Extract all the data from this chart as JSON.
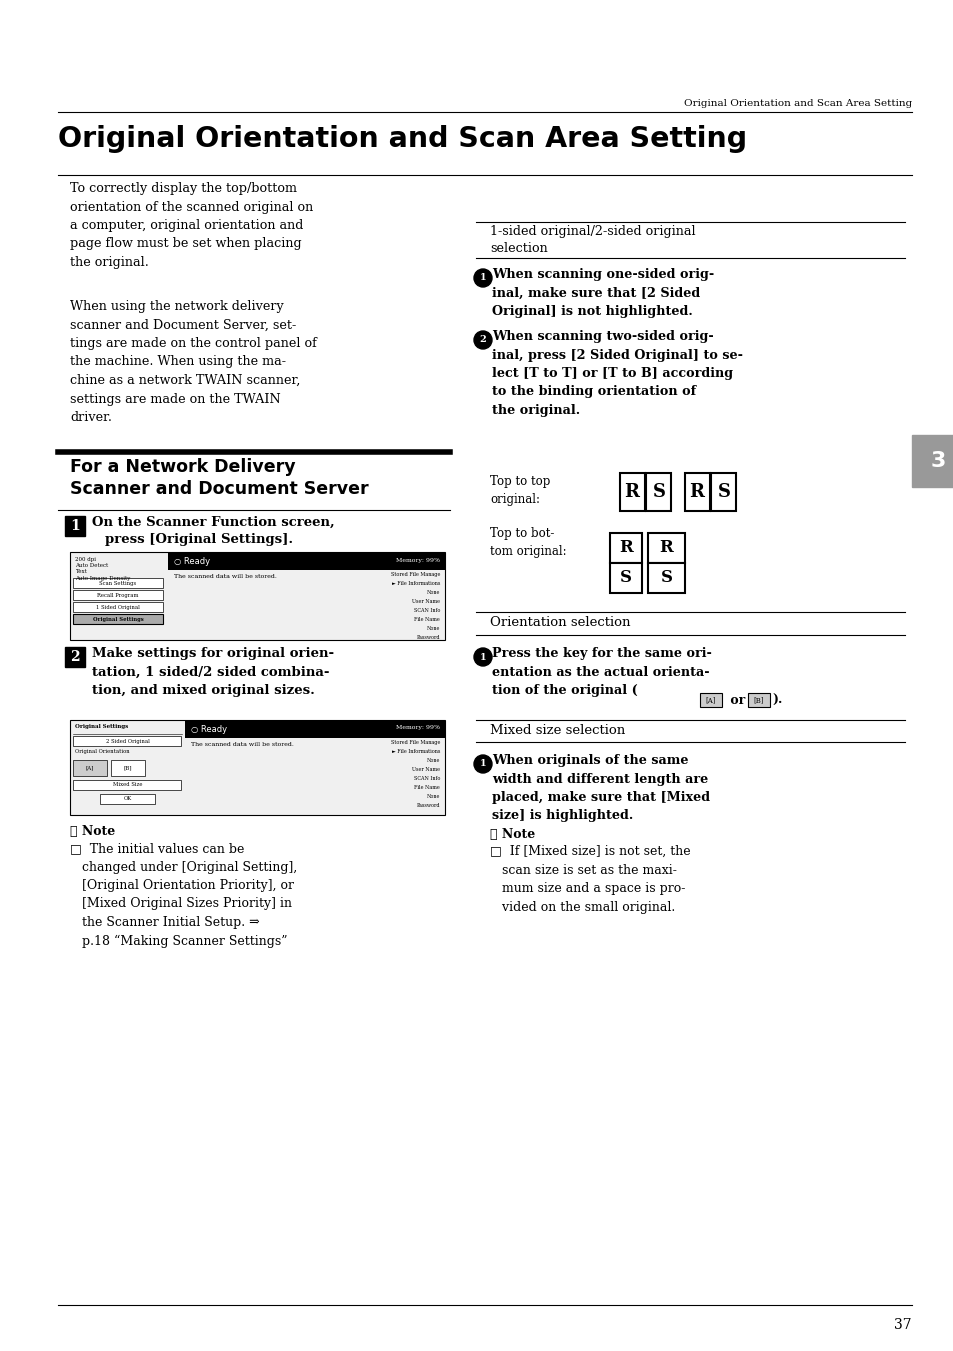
{
  "page_bg": "#ffffff",
  "header_text": "Original Orientation and Scan Area Setting",
  "main_title": "Original Orientation and Scan Area Setting",
  "page_number": "37",
  "tab_number": "3",
  "tab_color": "#999999",
  "para1": "To correctly display the top/bottom\norientation of the scanned original on\na computer, original orientation and\npage flow must be set when placing\nthe original.",
  "para2": "When using the network delivery\nscanner and Document Server, set-\ntings are made on the control panel of\nthe machine. When using the ma-\nchine as a network TWAIN scanner,\nsettings are made on the TWAIN\ndriver.",
  "section_title_line1": "For a Network Delivery",
  "section_title_line2": "Scanner and Document Server",
  "step1_text_line1": "On the Scanner Function screen,",
  "step1_text_line2": "press [Original Settings].",
  "step2_text": "Make settings for original orien-\ntation, 1 sided/2 sided combina-\ntion, and mixed original sizes.",
  "note_intro": "Note",
  "note_body": "□  The initial values can be\n   changed under [Original Setting],\n   [Original Orientation Priority], or\n   [Mixed Original Sizes Priority] in\n   the Scanner Initial Setup. ⇒\n   p.18 “Making Scanner Settings”",
  "rsec1_header": "1-sided original/2-sided original\nselection",
  "rsec1_step1": "When scanning one-sided orig-\ninal, make sure that [2 Sided\nOriginal] is not highlighted.",
  "rsec1_step2": "When scanning two-sided orig-\ninal, press [2 Sided Original] to se-\nlect [T to T] or [T to B] according\nto the binding orientation of\nthe original.",
  "top_to_top_label": "Top to top\noriginal:",
  "top_to_bot_label": "Top to bot-\ntom original:",
  "orient_header": "Orientation selection",
  "orient_step1": "Press the key for the same ori-\nentation as the actual orienta-\ntion of the original (",
  "orient_step1_end": " or ",
  "orient_step1_close": ").",
  "mixed_header": "Mixed size selection",
  "mixed_step1": "When originals of the same\nwidth and different length are\nplaced, make sure that [Mixed\nsize] is highlighted.",
  "mixed_note_intro": "Note",
  "mixed_note_body": "□  If [Mixed size] is not set, the\n   scan size is set as the maxi-\n   mum size and a space is pro-\n   vided on the small original."
}
